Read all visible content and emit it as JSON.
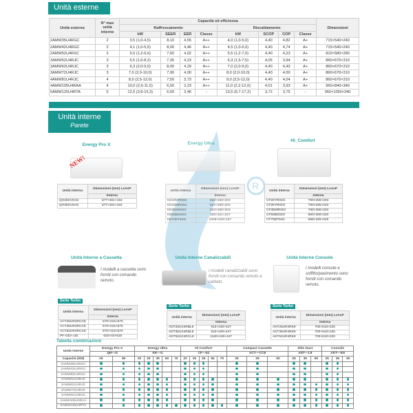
{
  "colors": {
    "accent": "#17958f",
    "title": "#2aa39e",
    "watermark": "#9fcfe6"
  },
  "outdoor": {
    "tab_label": "Unità esterne",
    "headers": {
      "unit": "Unità esterna",
      "max": "N° max unità interne",
      "group": "Capacità ed efficienza",
      "cool": "Raffrescamento",
      "heat": "Riscaldamento",
      "dims": "Dimensioni",
      "kw": "kW",
      "seer": "SEER",
      "eer": "EER",
      "classe": "Classe",
      "scop": "SCOP",
      "cop": "COP"
    },
    "rows": [
      [
        "2AMW35U4RGC",
        "2",
        "3,5 (1,0-4,5)",
        "8,10",
        "4,55",
        "A++",
        "4,0 (1,0-5,0)",
        "4,40",
        "4,82",
        "A+",
        "715×540×240"
      ],
      [
        "2AMW42U4RGC",
        "2",
        "4,1 (1,0-5,5)",
        "8,00",
        "4,46",
        "A++",
        "4,5 (1,0-6,0)",
        "4,40",
        "4,74",
        "A+",
        "715×540×240"
      ],
      [
        "2AMW52U4RXC",
        "2",
        "5,0 (1,2-6,6)",
        "7,60",
        "4,02",
        "A++",
        "5,5 (1,2-7,0)",
        "4,40",
        "4,23",
        "A+",
        "810×580×280"
      ],
      [
        "3AMW52U4RJC",
        "3",
        "5,5 (1,6-8,2)",
        "7,30",
        "4,23",
        "A++",
        "6,3 (1,5-7,5)",
        "4,05",
        "3,94",
        "A+",
        "860×670×310"
      ],
      [
        "3AMW62U4RJC",
        "3",
        "6,3 (2,0-9,0)",
        "8,00",
        "4,29",
        "A++",
        "7,0 (2,0-9,0)",
        "4,40",
        "4,43",
        "A+",
        "860×670×310"
      ],
      [
        "3AMW72U4RJC",
        "3",
        "7,0 (2,0-10,0)",
        "7,90",
        "4,00",
        "A++",
        "8,0 (2,0-10,0)",
        "4,40",
        "4,00",
        "A+",
        "860×670×310"
      ],
      [
        "4AMW81U4RJC",
        "4",
        "8,0 (2,5-12,0)",
        "7,50",
        "3,73",
        "A++",
        "9,0 (2,5-12,0)",
        "4,40",
        "4,04",
        "A+",
        "860×670×310"
      ],
      [
        "4AMW105U4RAA",
        "4",
        "10,0 (2,6-11,5)",
        "6,50",
        "3,23",
        "A++",
        "11,0 (2,2-12,0)",
        "4,01",
        "3,93",
        "A+",
        "950×840×340"
      ],
      [
        "5AMW125U4RTA",
        "5",
        "12,5 (3,8-15,3)",
        "6,50",
        "3,46",
        "-",
        "13,5 (6,7-17,2)",
        "3,72",
        "3,75",
        "-",
        "950×1050×340"
      ]
    ]
  },
  "indoor": {
    "title": "Unità interne",
    "subtitle": "Parete"
  },
  "table_headers": {
    "unit": "Unità interna",
    "dims": "Dimensioni (mm) LxAxP",
    "sub": "Interna"
  },
  "wall": [
    {
      "name": "Energy Pro X",
      "badge": "NEW!",
      "rows": [
        [
          "QH25XV0AG",
          "877×301×194"
        ],
        [
          "QH35XV0AG",
          "877×301×194"
        ]
      ]
    },
    {
      "name": "Energy Ultra",
      "rows": [
        [
          "KE20MR0SG",
          "822×258×203"
        ],
        [
          "KE25MR0SG",
          "822×258×203"
        ],
        [
          "KE35XR0SG",
          "822×258×203"
        ],
        [
          "KE50BS0SG",
          "920×321×227"
        ],
        [
          "KE70KT0SG",
          "1008×325×237"
        ]
      ]
    },
    {
      "name": "HI_Comfort",
      "rows": [
        [
          "CF20YR04G",
          "790×255×203"
        ],
        [
          "CF25YR04G",
          "790×255×203"
        ],
        [
          "CF35MR04G",
          "790×255×203"
        ],
        [
          "CF50BS04G",
          "890×300×220"
        ],
        [
          "CF70BT04G",
          "998×325×225"
        ]
      ]
    }
  ],
  "other": [
    {
      "name": "Unità Interne a Cassetta",
      "desc": "I modelli a cassetta sono forniti con comando remoto.",
      "serie": "Serie Turbo",
      "rows": [
        [
          "ACT26UR4RCC8",
          "570×215×570"
        ],
        [
          "ACT35UR4RCC8",
          "570×215×570"
        ],
        [
          "ACT52UR4RCC8",
          "570×215×570"
        ],
        [
          "PF-GEA-UD",
          "620×40×620"
        ]
      ]
    },
    {
      "name": "Unità Interne Canalizzabili",
      "desc": "I modelli canalizzabili sono forniti con comando remoto e cablato.",
      "serie": "Serie Turbo",
      "rows": [
        [
          "ADT26UX4RBL8",
          "910×190×447"
        ],
        [
          "ADT35UX4RBL8",
          "910×190×447"
        ],
        [
          "ADT52UX4RCL8",
          "1180×190×447"
        ]
      ]
    },
    {
      "name": "Unità Interne Console",
      "desc": "I modelli console e soffitto/pavimento sono forniti con comando remoto.",
      "serie": "Serie Turbo",
      "rows": [
        [
          "AKT26UR4RK8",
          "700×610×220"
        ],
        [
          "AKT35UR4RK8",
          "700×610×220"
        ],
        [
          "AKT52UR4RK8",
          "700×610×220"
        ]
      ]
    }
  ],
  "combo": {
    "title": "Tabella combinazioni",
    "row_header": "Unità interne",
    "cap_label": "Capacità (kW)",
    "groups": [
      {
        "name": "Energy Pro X",
        "code": "QH—G",
        "caps": [
          "25",
          "35"
        ]
      },
      {
        "name": "Energy Ultra",
        "code": "KE—G",
        "caps": [
          "20",
          "25",
          "35",
          "50",
          "70"
        ]
      },
      {
        "name": "Hi Comfort",
        "code": "CF—04",
        "caps": [
          "20",
          "25",
          "35",
          "50",
          "70"
        ]
      },
      {
        "name": "Compact Cassette",
        "code": "ACT—CC8",
        "caps": [
          "25",
          "35",
          "50"
        ]
      },
      {
        "name": "Slim Duct",
        "code": "ADT—L8",
        "caps": [
          "25",
          "35",
          "50"
        ]
      },
      {
        "name": "Console",
        "code": "AKT—K8",
        "caps": [
          "25",
          "35",
          "50"
        ]
      }
    ],
    "rows": [
      {
        "unit": "2AMW35U4RGC",
        "compat": [
          1,
          1,
          1,
          1,
          1,
          0,
          0,
          1,
          1,
          1,
          0,
          0,
          1,
          1,
          0,
          1,
          1,
          0,
          1,
          1,
          0
        ]
      },
      {
        "unit": "2AMW42U4RGC",
        "compat": [
          1,
          1,
          1,
          1,
          1,
          0,
          0,
          1,
          1,
          1,
          0,
          0,
          1,
          1,
          0,
          1,
          1,
          0,
          1,
          1,
          0
        ]
      },
      {
        "unit": "2AMW52U4RXC",
        "compat": [
          1,
          1,
          1,
          1,
          1,
          0,
          0,
          1,
          1,
          1,
          0,
          0,
          1,
          1,
          0,
          1,
          1,
          0,
          1,
          1,
          0
        ]
      },
      {
        "unit": "3AMW52U4RJC",
        "compat": [
          1,
          1,
          1,
          1,
          1,
          1,
          0,
          1,
          1,
          1,
          1,
          0,
          1,
          1,
          1,
          1,
          1,
          0,
          1,
          1,
          1
        ]
      },
      {
        "unit": "3AMW62U4RJC",
        "compat": [
          1,
          1,
          1,
          1,
          1,
          1,
          0,
          1,
          1,
          1,
          1,
          0,
          1,
          1,
          1,
          1,
          1,
          1,
          1,
          1,
          1
        ]
      },
      {
        "unit": "3AMW72U4RJC",
        "compat": [
          1,
          1,
          1,
          1,
          1,
          1,
          0,
          1,
          1,
          1,
          1,
          0,
          1,
          1,
          1,
          1,
          1,
          1,
          1,
          1,
          1
        ]
      },
      {
        "unit": "4AMW81U4RJC",
        "compat": [
          1,
          1,
          1,
          1,
          1,
          1,
          0,
          1,
          1,
          1,
          1,
          0,
          1,
          1,
          1,
          1,
          1,
          1,
          1,
          1,
          1
        ]
      },
      {
        "unit": "4AMW105U4RAA",
        "compat": [
          1,
          1,
          1,
          1,
          1,
          1,
          0,
          1,
          1,
          1,
          1,
          0,
          1,
          1,
          1,
          1,
          1,
          1,
          1,
          1,
          1
        ]
      },
      {
        "unit": "5AMW125U4RTA",
        "compat": [
          1,
          1,
          1,
          1,
          1,
          1,
          1,
          1,
          1,
          1,
          1,
          1,
          1,
          1,
          1,
          1,
          1,
          1,
          1,
          1,
          1
        ]
      }
    ]
  }
}
